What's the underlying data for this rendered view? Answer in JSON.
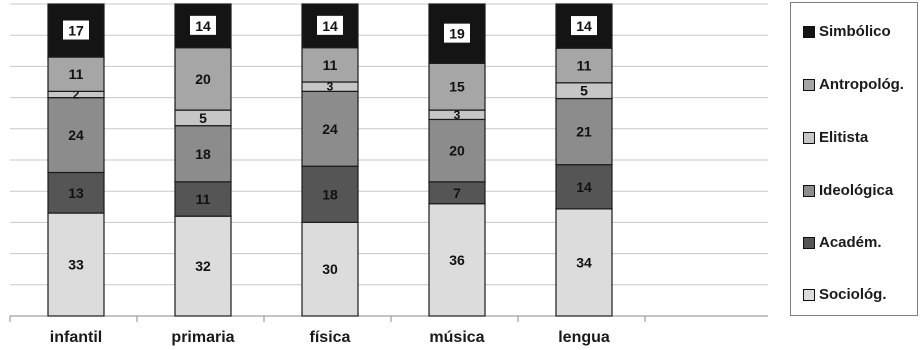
{
  "chart_data": {
    "type": "bar",
    "stacked": true,
    "categories": [
      "infantil",
      "primaria",
      "física",
      "música",
      "lengua"
    ],
    "series": [
      {
        "name": "Sociológ.",
        "color": "#dcdcdc",
        "label_color": "#111111",
        "values": [
          33,
          32,
          30,
          36,
          34
        ]
      },
      {
        "name": "Académ.",
        "color": "#555555",
        "label_color": "#111111",
        "values": [
          13,
          11,
          18,
          7,
          14
        ]
      },
      {
        "name": "Ideológica",
        "color": "#8c8c8c",
        "label_color": "#111111",
        "values": [
          24,
          18,
          24,
          20,
          21
        ]
      },
      {
        "name": "Elitista",
        "color": "#c6c6c6",
        "label_color": "#111111",
        "values": [
          2,
          5,
          3,
          3,
          5
        ]
      },
      {
        "name": "Antropológ.",
        "color": "#a6a6a6",
        "label_color": "#111111",
        "values": [
          11,
          20,
          11,
          15,
          11
        ]
      },
      {
        "name": "Simbólico",
        "color": "#141414",
        "label_color": "#111111",
        "label_bg": "#ffffff",
        "values": [
          17,
          14,
          14,
          19,
          14
        ]
      }
    ],
    "legend_order": [
      "Simbólico",
      "Antropológ.",
      "Elitista",
      "Ideológica",
      "Académ.",
      "Sociológ."
    ],
    "ylim": [
      0,
      100
    ],
    "grid": true,
    "legend_position": "right"
  }
}
